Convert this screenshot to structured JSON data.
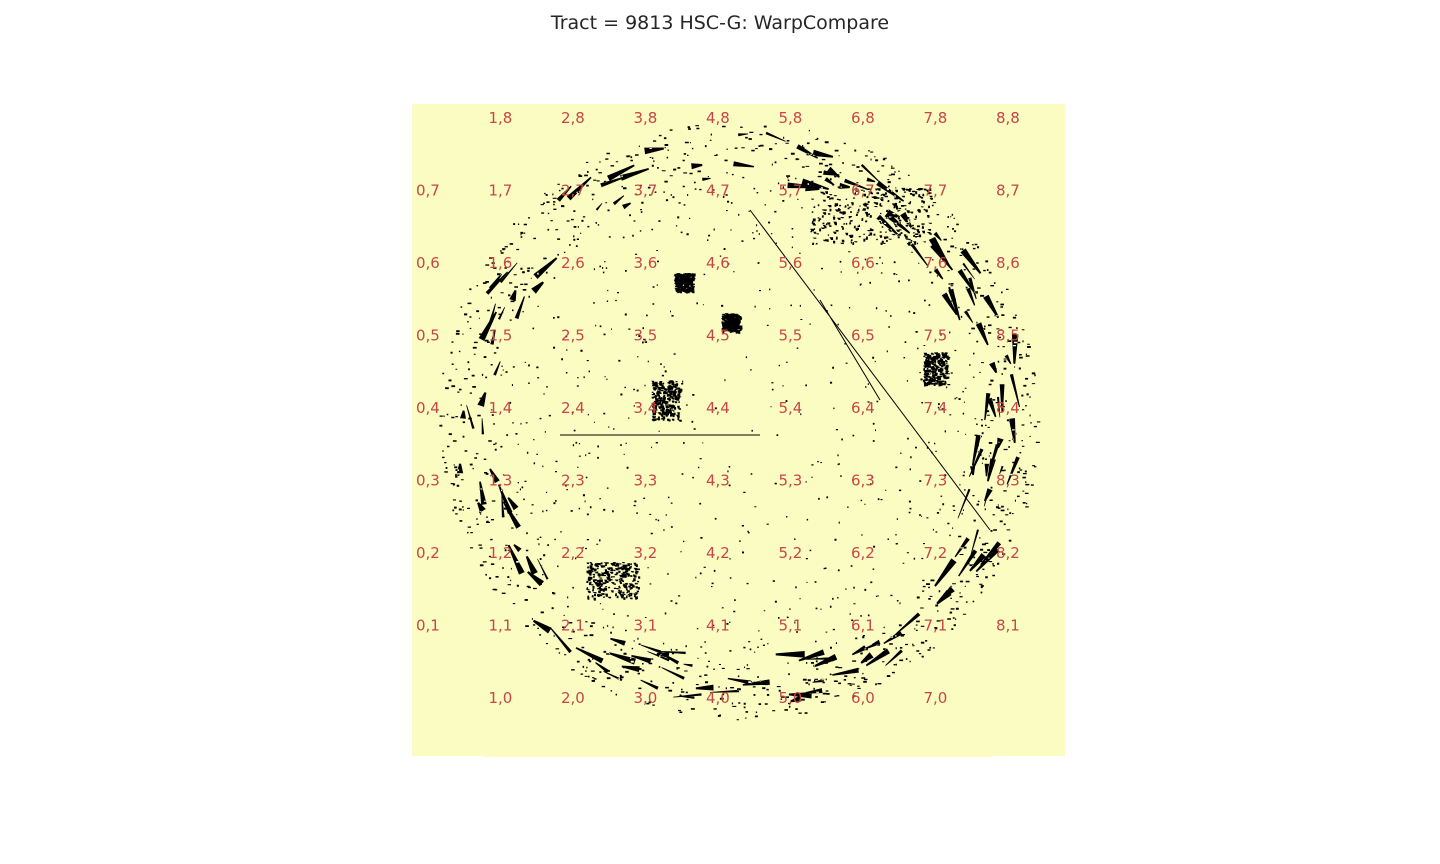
{
  "chart_data": {
    "type": "heatmap",
    "title": "Tract = 9813 HSC-G: WarpCompare",
    "xlabel": "",
    "ylabel": "",
    "grid": false,
    "colors": {
      "coverage": "#fbfcc2",
      "masked": "#000000",
      "patch_label": "#c64646"
    },
    "patches": [
      "0,1",
      "0,2",
      "0,3",
      "0,4",
      "0,5",
      "0,6",
      "0,7",
      "1,0",
      "1,1",
      "1,2",
      "1,3",
      "1,4",
      "1,5",
      "1,6",
      "1,7",
      "1,8",
      "2,0",
      "2,1",
      "2,2",
      "2,3",
      "2,4",
      "2,5",
      "2,6",
      "2,7",
      "2,8",
      "3,0",
      "3,1",
      "3,2",
      "3,3",
      "3,4",
      "3,5",
      "3,6",
      "3,7",
      "3,8",
      "4,0",
      "4,1",
      "4,2",
      "4,3",
      "4,4",
      "4,5",
      "4,6",
      "4,7",
      "4,8",
      "5,0",
      "5,1",
      "5,2",
      "5,3",
      "5,4",
      "5,5",
      "5,6",
      "5,7",
      "5,8",
      "6,0",
      "6,1",
      "6,2",
      "6,3",
      "6,4",
      "6,5",
      "6,6",
      "6,7",
      "6,8",
      "7,0",
      "7,1",
      "7,2",
      "7,3",
      "7,4",
      "7,5",
      "7,6",
      "7,7",
      "7,8",
      "8,1",
      "8,2",
      "8,3",
      "8,4",
      "8,5",
      "8,6",
      "8,7",
      "8,8"
    ]
  }
}
